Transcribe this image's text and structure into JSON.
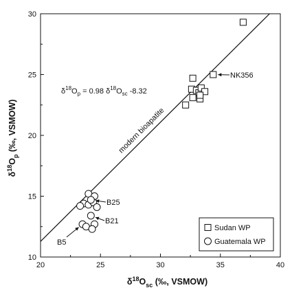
{
  "chart_data": {
    "type": "scatter",
    "xlim": [
      20,
      40
    ],
    "ylim": [
      10,
      30
    ],
    "x_ticks": [
      "20",
      "25",
      "30",
      "35",
      "40"
    ],
    "y_ticks": [
      "10",
      "15",
      "20",
      "25",
      "30"
    ],
    "xlabel": {
      "delta": "δ",
      "sup": "18",
      "main": "O",
      "sub": "sc",
      "rest": " (‰, VSMOW)"
    },
    "ylabel": {
      "delta": "δ",
      "sup": "18",
      "main": "O",
      "sub": "p",
      "rest": " (‰, VSMOW)"
    },
    "equation": {
      "d1": "δ",
      "s1": "18",
      "m1": "O",
      "b1": "p",
      "mid": " = 0.98 ",
      "d2": "δ",
      "s2": "18",
      "m2": "O",
      "b2": "sc",
      "end": " -8.32"
    },
    "regression_line": {
      "slope": 0.98,
      "intercept": -8.32,
      "label": "modern bioapatite"
    },
    "series": [
      {
        "name": "Sudan WP",
        "marker": "square",
        "points": [
          [
            36.9,
            29.3
          ],
          [
            34.4,
            25.0
          ],
          [
            32.7,
            24.7
          ],
          [
            32.6,
            23.8
          ],
          [
            33.0,
            23.7
          ],
          [
            33.2,
            23.5
          ],
          [
            33.4,
            23.9
          ],
          [
            33.7,
            23.6
          ],
          [
            32.7,
            23.1
          ],
          [
            33.3,
            23.0
          ],
          [
            32.1,
            22.5
          ],
          [
            33.3,
            23.3
          ]
        ]
      },
      {
        "name": "Guatemala WP",
        "marker": "circle",
        "points": [
          [
            24.0,
            15.2
          ],
          [
            24.5,
            15.0
          ],
          [
            23.6,
            14.4
          ],
          [
            23.3,
            14.2
          ],
          [
            24.0,
            14.3
          ],
          [
            24.4,
            14.5
          ],
          [
            24.7,
            14.1
          ],
          [
            24.2,
            13.4
          ],
          [
            24.5,
            12.7
          ],
          [
            23.5,
            12.7
          ],
          [
            23.8,
            12.5
          ],
          [
            24.3,
            12.3
          ],
          [
            24.2,
            14.7
          ]
        ]
      }
    ],
    "annotations": [
      {
        "text": "NK356",
        "point": [
          34.4,
          25.0
        ]
      },
      {
        "text": "B25",
        "point": [
          24.2,
          14.7
        ]
      },
      {
        "text": "B21",
        "point": [
          24.2,
          13.4
        ]
      },
      {
        "text": "B5",
        "point": [
          23.5,
          12.7
        ]
      }
    ],
    "legend": {
      "position": "bottom-right",
      "items": [
        "Sudan WP",
        "Guatemala WP"
      ]
    }
  }
}
